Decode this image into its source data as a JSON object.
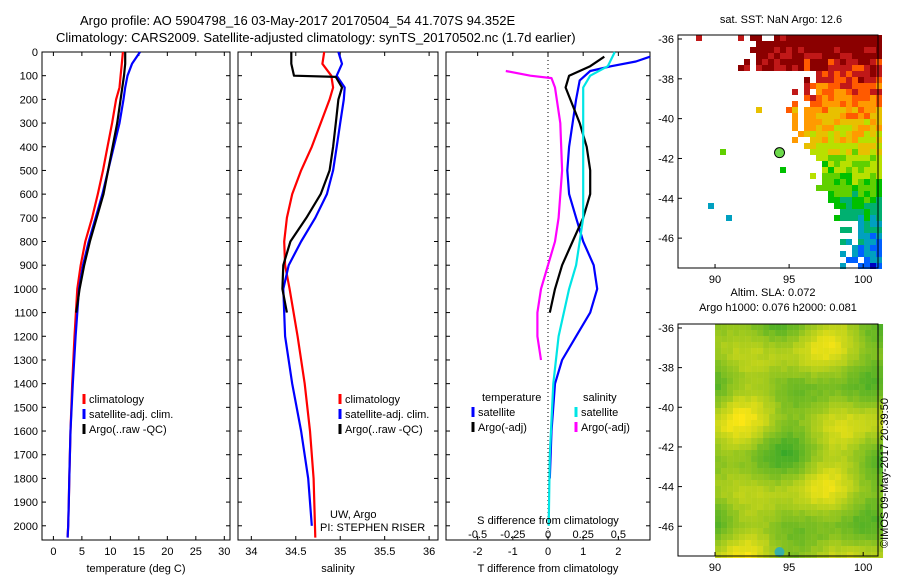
{
  "header": {
    "title_line1": "Argo profile: AO 5904798_16 03-May-2017 20170504_54 41.707S 94.352E",
    "title_line2": "Climatology: CARS2009. Satellite-adjusted climatology: synTS_20170502.nc (1.7d earlier)"
  },
  "credit": {
    "line1": "UW, Argo",
    "line2": "PI: STEPHEN RISER",
    "stamp": "©IMOS 09-May-2017 20:39:50"
  },
  "colors": {
    "climatology": "#ff0000",
    "satellite": "#0000ff",
    "argo": "#000000",
    "salinity_satellite": "#00e5e5",
    "salinity_argo": "#ff00ff"
  },
  "chart_data": [
    {
      "type": "line",
      "id": "temperature",
      "xlabel": "temperature (deg C)",
      "xlim": [
        -2,
        31
      ],
      "ylim": [
        2060,
        0
      ],
      "xticks": [
        0,
        5,
        10,
        15,
        20,
        25,
        30
      ],
      "yticks": [
        0,
        100,
        200,
        300,
        400,
        500,
        600,
        700,
        800,
        900,
        1000,
        1100,
        1200,
        1300,
        1400,
        1500,
        1600,
        1700,
        1800,
        1900,
        2000
      ],
      "legend": [
        "climatology",
        "satellite-adj. clim.",
        "Argo(..raw -QC)"
      ],
      "series": [
        {
          "name": "climatology",
          "color": "#ff0000",
          "x": [
            12.2,
            12.0,
            11.8,
            11.6,
            11.0,
            10.3,
            9.5,
            8.7,
            7.8,
            6.8,
            5.6,
            4.8,
            4.2,
            3.7,
            3.3,
            3.0,
            2.8,
            2.7,
            2.6,
            2.5
          ],
          "y": [
            0,
            50,
            100,
            150,
            200,
            300,
            400,
            500,
            600,
            700,
            800,
            900,
            1000,
            1200,
            1400,
            1600,
            1800,
            1900,
            2000,
            2050
          ]
        },
        {
          "name": "satellite-adj. clim.",
          "color": "#0000ff",
          "x": [
            15.2,
            13.8,
            13.0,
            12.6,
            12.3,
            11.6,
            10.6,
            9.6,
            8.6,
            7.4,
            6.2,
            5.2,
            4.5,
            3.9,
            3.4,
            3.0,
            2.8,
            2.7,
            2.6,
            2.5
          ],
          "y": [
            0,
            50,
            100,
            150,
            200,
            300,
            400,
            500,
            600,
            700,
            800,
            900,
            1000,
            1200,
            1400,
            1600,
            1800,
            1900,
            2000,
            2050
          ]
        },
        {
          "name": "Argo(..raw -QC)",
          "color": "#000000",
          "x": [
            12.6,
            12.6,
            12.4,
            12.1,
            11.8,
            11.2,
            10.4,
            9.6,
            8.8,
            7.6,
            6.4,
            5.4,
            4.6,
            4.0
          ],
          "y": [
            0,
            50,
            100,
            150,
            200,
            300,
            400,
            500,
            600,
            700,
            800,
            900,
            1000,
            1100
          ]
        }
      ]
    },
    {
      "type": "line",
      "id": "salinity",
      "xlabel": "salinity",
      "xlim": [
        33.85,
        36.1
      ],
      "ylim": [
        2060,
        0
      ],
      "xticks": [
        34,
        34.5,
        35,
        35.5,
        36
      ],
      "legend": [
        "climatology",
        "satellite-adj. clim.",
        "Argo(..raw -QC)"
      ],
      "series": [
        {
          "name": "climatology",
          "color": "#ff0000",
          "x": [
            34.82,
            34.8,
            34.9,
            34.92,
            34.88,
            34.78,
            34.68,
            34.56,
            34.46,
            34.4,
            34.37,
            34.38,
            34.43,
            34.52,
            34.6,
            34.66,
            34.7,
            34.72
          ],
          "y": [
            0,
            50,
            100,
            150,
            200,
            300,
            400,
            500,
            600,
            700,
            800,
            900,
            1000,
            1200,
            1400,
            1600,
            1800,
            2050
          ]
        },
        {
          "name": "satellite-adj. clim.",
          "color": "#0000ff",
          "x": [
            34.98,
            35.02,
            34.96,
            35.05,
            35.04,
            35.0,
            34.96,
            34.92,
            34.85,
            34.72,
            34.56,
            34.42,
            34.36,
            34.38,
            34.46,
            34.56,
            34.64,
            34.68
          ],
          "y": [
            0,
            50,
            100,
            150,
            200,
            300,
            400,
            500,
            600,
            700,
            800,
            900,
            1000,
            1200,
            1400,
            1600,
            1800,
            2000
          ]
        },
        {
          "name": "Argo(..raw -QC)",
          "color": "#000000",
          "x": [
            34.45,
            34.45,
            34.48,
            34.95,
            35.02,
            34.98,
            34.95,
            34.92,
            34.88,
            34.78,
            34.62,
            34.44,
            34.36,
            34.35,
            34.4
          ],
          "y": [
            0,
            50,
            100,
            105,
            150,
            200,
            300,
            400,
            500,
            600,
            700,
            800,
            900,
            1000,
            1100
          ]
        }
      ]
    },
    {
      "type": "line",
      "id": "differences",
      "xlabel": "T difference from climatology",
      "xlim": [
        -2.9,
        2.9
      ],
      "ylim": [
        2060,
        0
      ],
      "xticks": [
        -2,
        -1,
        0,
        1,
        2
      ],
      "top_axis_label": "S difference from climatology",
      "top_ticks": [
        "-0.5",
        "-0.25",
        "0",
        "0.25",
        "0.5"
      ],
      "top_tick_values": [
        -0.5,
        -0.25,
        0,
        0.25,
        0.5
      ],
      "legend_temperature": {
        "title": "temperature",
        "items": [
          "satellite",
          "Argo(-adj)"
        ]
      },
      "legend_salinity": {
        "title": "salinity",
        "items": [
          "satellite",
          "Argo(-adj)"
        ]
      },
      "series": [
        {
          "name": "temperature satellite",
          "color": "#0000ff",
          "x": [
            2.9,
            2.5,
            1.8,
            1.2,
            0.9,
            0.8,
            0.7,
            0.6,
            0.55,
            0.6,
            0.8,
            1.0,
            1.3,
            1.4,
            1.2,
            0.8,
            0.4,
            0.2,
            0.1,
            0.05
          ],
          "y": [
            20,
            40,
            60,
            80,
            120,
            200,
            300,
            400,
            500,
            600,
            700,
            800,
            900,
            1000,
            1100,
            1200,
            1300,
            1400,
            1600,
            1800
          ]
        },
        {
          "name": "temperature Argo(-adj)",
          "color": "#000000",
          "x": [
            1.6,
            1.2,
            0.6,
            0.5,
            0.9,
            1.1,
            1.2,
            1.2,
            1.0,
            0.7,
            0.4,
            0.2,
            0.05
          ],
          "y": [
            20,
            60,
            100,
            150,
            300,
            400,
            500,
            600,
            700,
            800,
            900,
            1000,
            1100
          ]
        },
        {
          "name": "salinity satellite",
          "color": "#00e5e5",
          "x": [
            1.9,
            1.7,
            1.2,
            1.0,
            1.0,
            1.0,
            1.0,
            0.9,
            0.8,
            0.6,
            0.3,
            0.15,
            0.05,
            0.02
          ],
          "y": [
            0,
            60,
            100,
            150,
            300,
            500,
            700,
            800,
            900,
            1000,
            1200,
            1400,
            1700,
            2000
          ]
        },
        {
          "name": "salinity Argo(-adj)",
          "color": "#ff00ff",
          "x": [
            -1.2,
            -0.5,
            0.1,
            0.2,
            0.35,
            0.4,
            0.3,
            0.2,
            0.0,
            -0.2,
            -0.3,
            -0.3,
            -0.2
          ],
          "y": [
            80,
            100,
            110,
            150,
            300,
            500,
            700,
            800,
            900,
            1000,
            1100,
            1200,
            1300
          ]
        }
      ]
    },
    {
      "type": "heatmap",
      "id": "sst-map",
      "title": "sat. SST: NaN Argo: 12.6",
      "xlim": [
        87.5,
        101
      ],
      "ylim": [
        -47.5,
        -35.8
      ],
      "xticks": [
        90,
        95,
        100
      ],
      "yticks": [
        -36,
        -38,
        -40,
        -42,
        -44,
        -46
      ],
      "argo_location": {
        "lon": 94.352,
        "lat": -41.707
      }
    },
    {
      "type": "heatmap",
      "id": "sla-map",
      "title": "Altim. SLA: 0.072",
      "subtitle": "Argo h1000: 0.076 h2000: 0.081",
      "xlim": [
        87.5,
        101
      ],
      "ylim": [
        -47.5,
        -35.8
      ],
      "xticks": [
        90,
        95,
        100
      ],
      "yticks": [
        -36,
        -38,
        -40,
        -42,
        -44,
        -46
      ]
    }
  ]
}
